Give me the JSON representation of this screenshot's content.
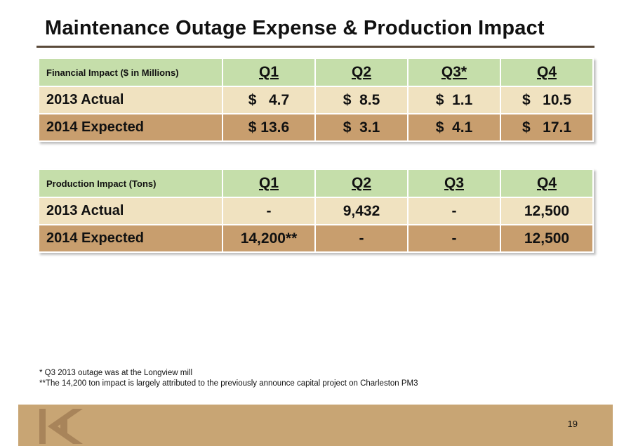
{
  "title": "Maintenance Outage Expense & Production Impact",
  "financial_table": {
    "header": [
      "Financial Impact ($ in Millions)",
      "Q1",
      "Q2",
      "Q3*",
      "Q4"
    ],
    "rows": [
      [
        "2013 Actual",
        "$   4.7",
        "$  8.5",
        "$  1.1",
        "$   10.5"
      ],
      [
        "2014 Expected",
        "$ 13.6",
        "$  3.1",
        "$  4.1",
        "$   17.1"
      ]
    ]
  },
  "production_table": {
    "header": [
      "Production Impact (Tons)",
      "Q1",
      "Q2",
      "Q3",
      "Q4"
    ],
    "rows": [
      [
        "2013 Actual",
        "-",
        "9,432",
        "-",
        "12,500"
      ],
      [
        "2014 Expected",
        "14,200**",
        "-",
        "-",
        "12,500"
      ]
    ]
  },
  "footnotes": [
    "* Q3 2013 outage was at the Longview mill",
    "**The 14,200 ton impact is largely attributed to the previously announce capital project on Charleston PM3"
  ],
  "page_number": "19",
  "colors": {
    "header_green": "#c5deaa",
    "row_light": "#f0e2c0",
    "row_dark": "#c89e6e",
    "footer_tan": "#c8a574"
  },
  "icons": {
    "footer_logo": "company-logo-icon"
  }
}
